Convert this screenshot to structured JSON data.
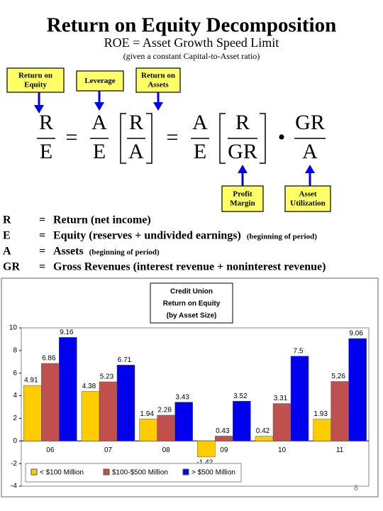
{
  "header": {
    "title": "Return on Equity Decomposition",
    "subtitle": "ROE = Asset Growth Speed Limit",
    "note": "(given a constant Capital-to-Asset ratio)"
  },
  "labels": {
    "roe": "Return on Equity",
    "leverage": "Leverage",
    "roa": "Return on Assets",
    "margin": "Profit Margin",
    "utilization": "Asset Utilization"
  },
  "equation": {
    "lhs": {
      "num": "R",
      "den": "E"
    },
    "leverage": {
      "num": "A",
      "den": "E"
    },
    "roa": {
      "num": "R",
      "den": "A"
    },
    "leverage2": {
      "num": "A",
      "den": "E"
    },
    "margin": {
      "num": "R",
      "den": "GR"
    },
    "utilization": {
      "num": "GR",
      "den": "A"
    },
    "equals": "=",
    "dot": "•"
  },
  "definitions": [
    {
      "symbol": "R",
      "sign": "=",
      "text": "Return (net income)",
      "note": ""
    },
    {
      "symbol": "E",
      "sign": "=",
      "text": "Equity (reserves + undivided earnings)",
      "note": "(beginning of period)"
    },
    {
      "symbol": "A",
      "sign": "=",
      "text": "Assets",
      "note": "(beginning of period)"
    },
    {
      "symbol": "GR",
      "sign": "=",
      "text": "Gross Revenues (interest revenue + noninterest revenue)",
      "note": ""
    }
  ],
  "chart_data": {
    "type": "bar",
    "title": [
      "Credit Union",
      "Return on Equity",
      "(by Asset Size)"
    ],
    "categories": [
      "06",
      "07",
      "08",
      "09",
      "10",
      "11"
    ],
    "series": [
      {
        "name": "< $100 Million",
        "color": "#ffcc00",
        "values": [
          4.91,
          4.38,
          1.94,
          -1.42,
          0.42,
          1.93
        ]
      },
      {
        "name": "$100-$500 Million",
        "color": "#c0504d",
        "values": [
          6.86,
          5.23,
          2.28,
          0.43,
          3.31,
          5.26
        ]
      },
      {
        "name": "> $500 Million",
        "color": "#0000ee",
        "values": [
          9.16,
          6.71,
          3.43,
          3.52,
          7.5,
          9.06
        ]
      }
    ],
    "ylim": [
      -4,
      10
    ],
    "yticks": [
      -4,
      -2,
      0,
      2,
      4,
      6,
      8,
      10
    ],
    "grid": false
  },
  "page_number": "6"
}
